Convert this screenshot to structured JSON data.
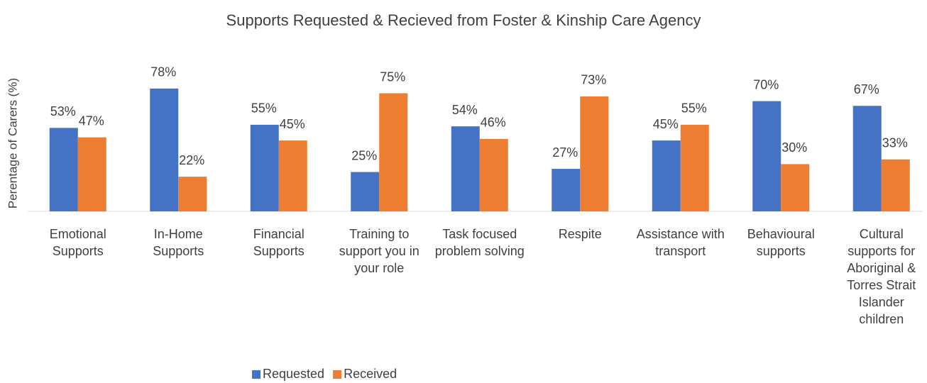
{
  "chart_data": {
    "type": "bar",
    "title": "Supports Requested & Recieved from Foster & Kinship Care Agency",
    "y_label": "Perentage of Carers (%)",
    "categories": [
      "Emotional Supports",
      "In-Home Supports",
      "Financial Supports",
      "Training to support you in your role",
      "Task focused problem solving",
      "Respite",
      "Assistance with transport",
      "Behavioural supports",
      "Cultural supports for Aboriginal & Torres Strait Islander children"
    ],
    "series": [
      {
        "name": "Requested",
        "color": "#4472c4",
        "values": [
          53,
          78,
          55,
          25,
          54,
          27,
          45,
          70,
          67
        ],
        "value_labels": [
          "53%",
          "78%",
          "55%",
          "25%",
          "54%",
          "27%",
          "45%",
          "70%",
          "67%"
        ]
      },
      {
        "name": "Received",
        "color": "#ed7d31",
        "values": [
          47,
          22,
          45,
          75,
          46,
          73,
          55,
          30,
          33
        ],
        "value_labels": [
          "47%",
          "22%",
          "45%",
          "75%",
          "46%",
          "73%",
          "55%",
          "30%",
          "33%"
        ]
      }
    ],
    "ylim": [
      0,
      100
    ],
    "legend": "bottom"
  }
}
